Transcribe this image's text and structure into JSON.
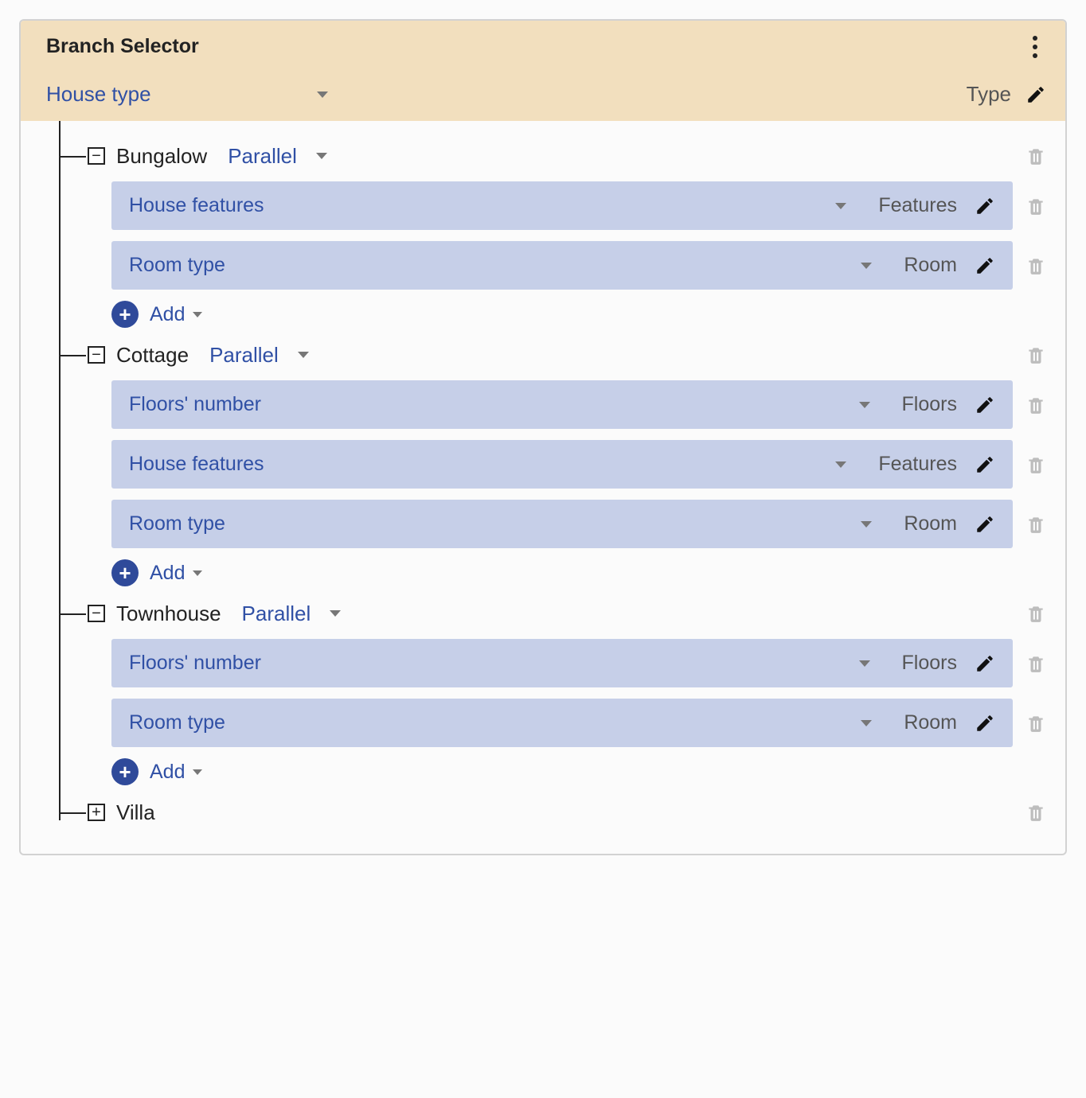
{
  "header": {
    "title": "Branch Selector",
    "selector_label": "House type",
    "type_label": "Type"
  },
  "add_label": "Add",
  "branches": [
    {
      "name": "Bungalow",
      "mode": "Parallel",
      "expanded": true,
      "children": [
        {
          "label": "House features",
          "tag": "Features"
        },
        {
          "label": "Room type",
          "tag": "Room"
        }
      ]
    },
    {
      "name": "Cottage",
      "mode": "Parallel",
      "expanded": true,
      "children": [
        {
          "label": "Floors' number",
          "tag": "Floors"
        },
        {
          "label": "House features",
          "tag": "Features"
        },
        {
          "label": "Room type",
          "tag": "Room"
        }
      ]
    },
    {
      "name": "Townhouse",
      "mode": "Parallel",
      "expanded": true,
      "children": [
        {
          "label": "Floors' number",
          "tag": "Floors"
        },
        {
          "label": "Room type",
          "tag": "Room"
        }
      ]
    },
    {
      "name": "Villa",
      "mode": "",
      "expanded": false,
      "children": []
    }
  ],
  "colors": {
    "header_bg": "#f2dfbe",
    "child_bg": "#c6cfe8",
    "link": "#3050a5",
    "plus_bg": "#2f4a9a",
    "trash": "#bdbdbd",
    "border": "#d2d2d2"
  }
}
